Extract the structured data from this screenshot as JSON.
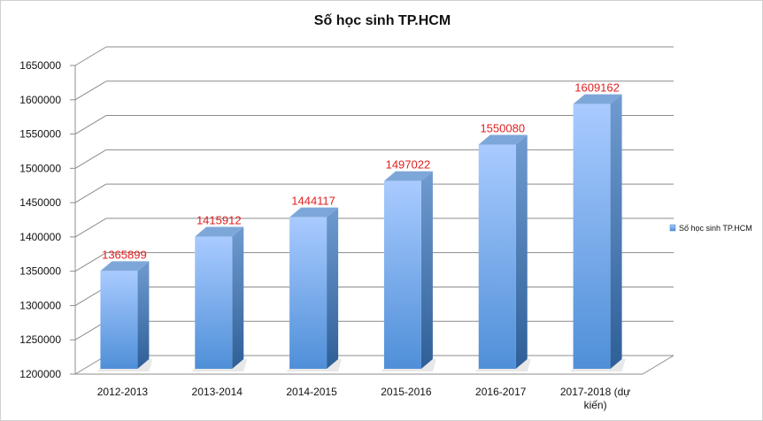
{
  "chart_data": {
    "type": "bar",
    "title": "Số học sinh TP.HCM",
    "xlabel": "",
    "ylabel": "",
    "categories": [
      "2012-2013",
      "2013-2014",
      "2014-2015",
      "2015-2016",
      "2016-2017",
      "2017-2018 (dự kiến)"
    ],
    "category_lines": [
      [
        "2012-2013"
      ],
      [
        "2013-2014"
      ],
      [
        "2014-2015"
      ],
      [
        "2015-2016"
      ],
      [
        "2016-2017"
      ],
      [
        "2017-2018 (dự",
        "kiến)"
      ]
    ],
    "series": [
      {
        "name": "Số học sinh TP.HCM",
        "values": [
          1365899,
          1415912,
          1444117,
          1497022,
          1550080,
          1609162
        ]
      }
    ],
    "ylim": [
      1200000,
      1650000
    ],
    "yticks": [
      1200000,
      1250000,
      1300000,
      1350000,
      1400000,
      1450000,
      1500000,
      1550000,
      1600000,
      1650000
    ],
    "grid": true,
    "legend_position": "right",
    "style": "3d-column",
    "colors": {
      "bar_light": "#a9cbff",
      "bar_dark": "#4f8fd8",
      "bar_side": "#3d6ea8",
      "bar_top": "#7ea7d9",
      "data_label": "#e02020",
      "grid": "#8c8c8c"
    }
  }
}
